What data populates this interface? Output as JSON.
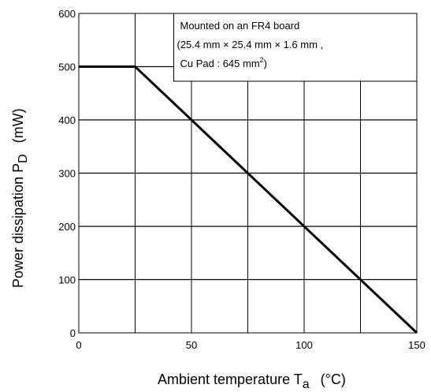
{
  "chart_data": {
    "type": "line",
    "xlabel": {
      "text": "Ambient temperature  T",
      "sub": "a",
      "unit": "(°C)"
    },
    "ylabel": {
      "text": "Power dissipation P",
      "sub": "D",
      "unit": "(mW)"
    },
    "xlim": [
      0,
      150
    ],
    "ylim": [
      0,
      600
    ],
    "xticks": [
      "0",
      "50",
      "100",
      "150"
    ],
    "yticks": [
      "0",
      "100",
      "200",
      "300",
      "400",
      "500",
      "600"
    ],
    "grid": true,
    "series": [
      {
        "x": [
          0,
          25,
          150
        ],
        "y": [
          500,
          500,
          0
        ]
      }
    ],
    "annotation": {
      "line1": "Mounted on an FR4 board",
      "line2": "(25.4 mm  ×  25.4 mm  ×  1.6 mm ,",
      "line3": " Cu Pad :  645 mm",
      "line3_sup": "2",
      "line3_end": ")"
    }
  }
}
